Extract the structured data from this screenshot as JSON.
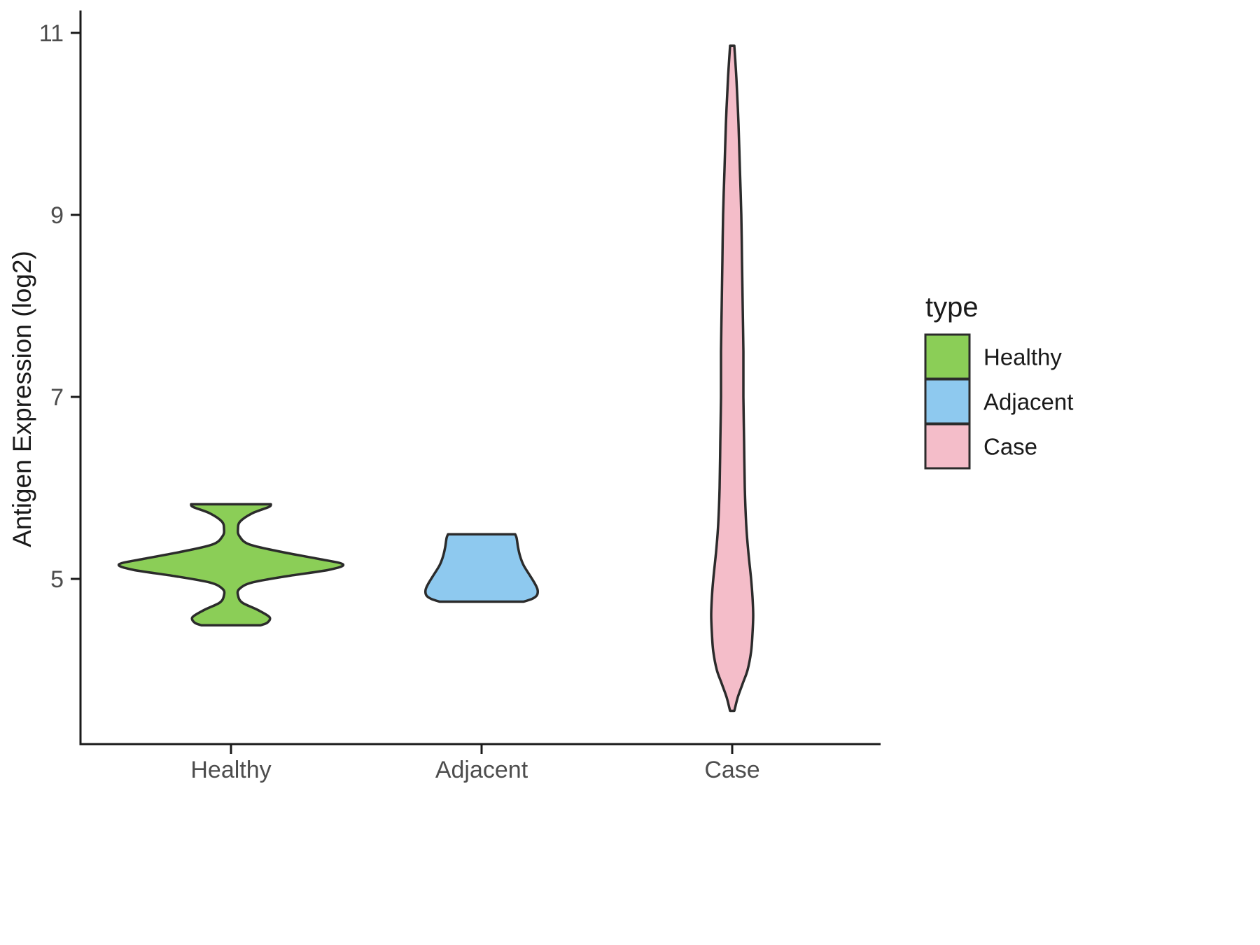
{
  "page": {
    "background": "#FFFFFF"
  },
  "chart_data": {
    "type": "violin",
    "title": "",
    "xlabel": "",
    "ylabel": "Antigen Expression (log2)",
    "categories": [
      "Healthy",
      "Adjacent",
      "Case"
    ],
    "y_ticks": [
      5,
      7,
      9,
      11
    ],
    "ylim": [
      3.3,
      11.1
    ],
    "grid": false,
    "legend": {
      "title": "type",
      "position": "right",
      "entries": [
        {
          "label": "Healthy",
          "color": "#8BCE57"
        },
        {
          "label": "Adjacent",
          "color": "#8EC9EF"
        },
        {
          "label": "Case",
          "color": "#F4BDC9"
        }
      ]
    },
    "series": [
      {
        "name": "Healthy",
        "color": "#8BCE57",
        "value_range": [
          4.49,
          5.82
        ],
        "profile_units": "[expression_value, density_halfwidth_px]",
        "profile": [
          [
            5.82,
            57
          ],
          [
            5.79,
            54
          ],
          [
            5.72,
            30
          ],
          [
            5.63,
            13
          ],
          [
            5.55,
            10
          ],
          [
            5.47,
            12
          ],
          [
            5.38,
            26
          ],
          [
            5.3,
            70
          ],
          [
            5.22,
            125
          ],
          [
            5.16,
            160
          ],
          [
            5.1,
            140
          ],
          [
            5.03,
            80
          ],
          [
            4.96,
            30
          ],
          [
            4.89,
            12
          ],
          [
            4.82,
            10
          ],
          [
            4.74,
            16
          ],
          [
            4.66,
            38
          ],
          [
            4.58,
            55
          ],
          [
            4.52,
            52
          ],
          [
            4.49,
            42
          ]
        ]
      },
      {
        "name": "Adjacent",
        "color": "#8EC9EF",
        "value_range": [
          4.75,
          5.49
        ],
        "profile_units": "[expression_value, density_halfwidth_px]",
        "profile": [
          [
            5.49,
            48
          ],
          [
            5.45,
            50
          ],
          [
            5.35,
            52
          ],
          [
            5.25,
            55
          ],
          [
            5.15,
            60
          ],
          [
            5.05,
            68
          ],
          [
            4.95,
            76
          ],
          [
            4.88,
            80
          ],
          [
            4.82,
            79
          ],
          [
            4.78,
            72
          ],
          [
            4.75,
            60
          ]
        ]
      },
      {
        "name": "Case",
        "color": "#F4BDC9",
        "value_range": [
          3.55,
          10.86
        ],
        "profile_units": "[expression_value, density_halfwidth_px]",
        "profile": [
          [
            10.86,
            3
          ],
          [
            10.5,
            6
          ],
          [
            10.0,
            9
          ],
          [
            9.5,
            11
          ],
          [
            9.0,
            13
          ],
          [
            8.5,
            14
          ],
          [
            8.0,
            15
          ],
          [
            7.5,
            16
          ],
          [
            7.0,
            16
          ],
          [
            6.5,
            17
          ],
          [
            6.0,
            18
          ],
          [
            5.6,
            20
          ],
          [
            5.3,
            23
          ],
          [
            5.0,
            27
          ],
          [
            4.8,
            29
          ],
          [
            4.6,
            30
          ],
          [
            4.4,
            29
          ],
          [
            4.2,
            27
          ],
          [
            4.0,
            22
          ],
          [
            3.85,
            15
          ],
          [
            3.7,
            8
          ],
          [
            3.58,
            4
          ],
          [
            3.55,
            3
          ]
        ]
      }
    ],
    "style": {
      "outline_color": "#2B2B2B",
      "axis_color": "#1A1A1A",
      "axis_title_color": "#1A1A1A",
      "tick_label_color": "#4D4D4D"
    }
  }
}
